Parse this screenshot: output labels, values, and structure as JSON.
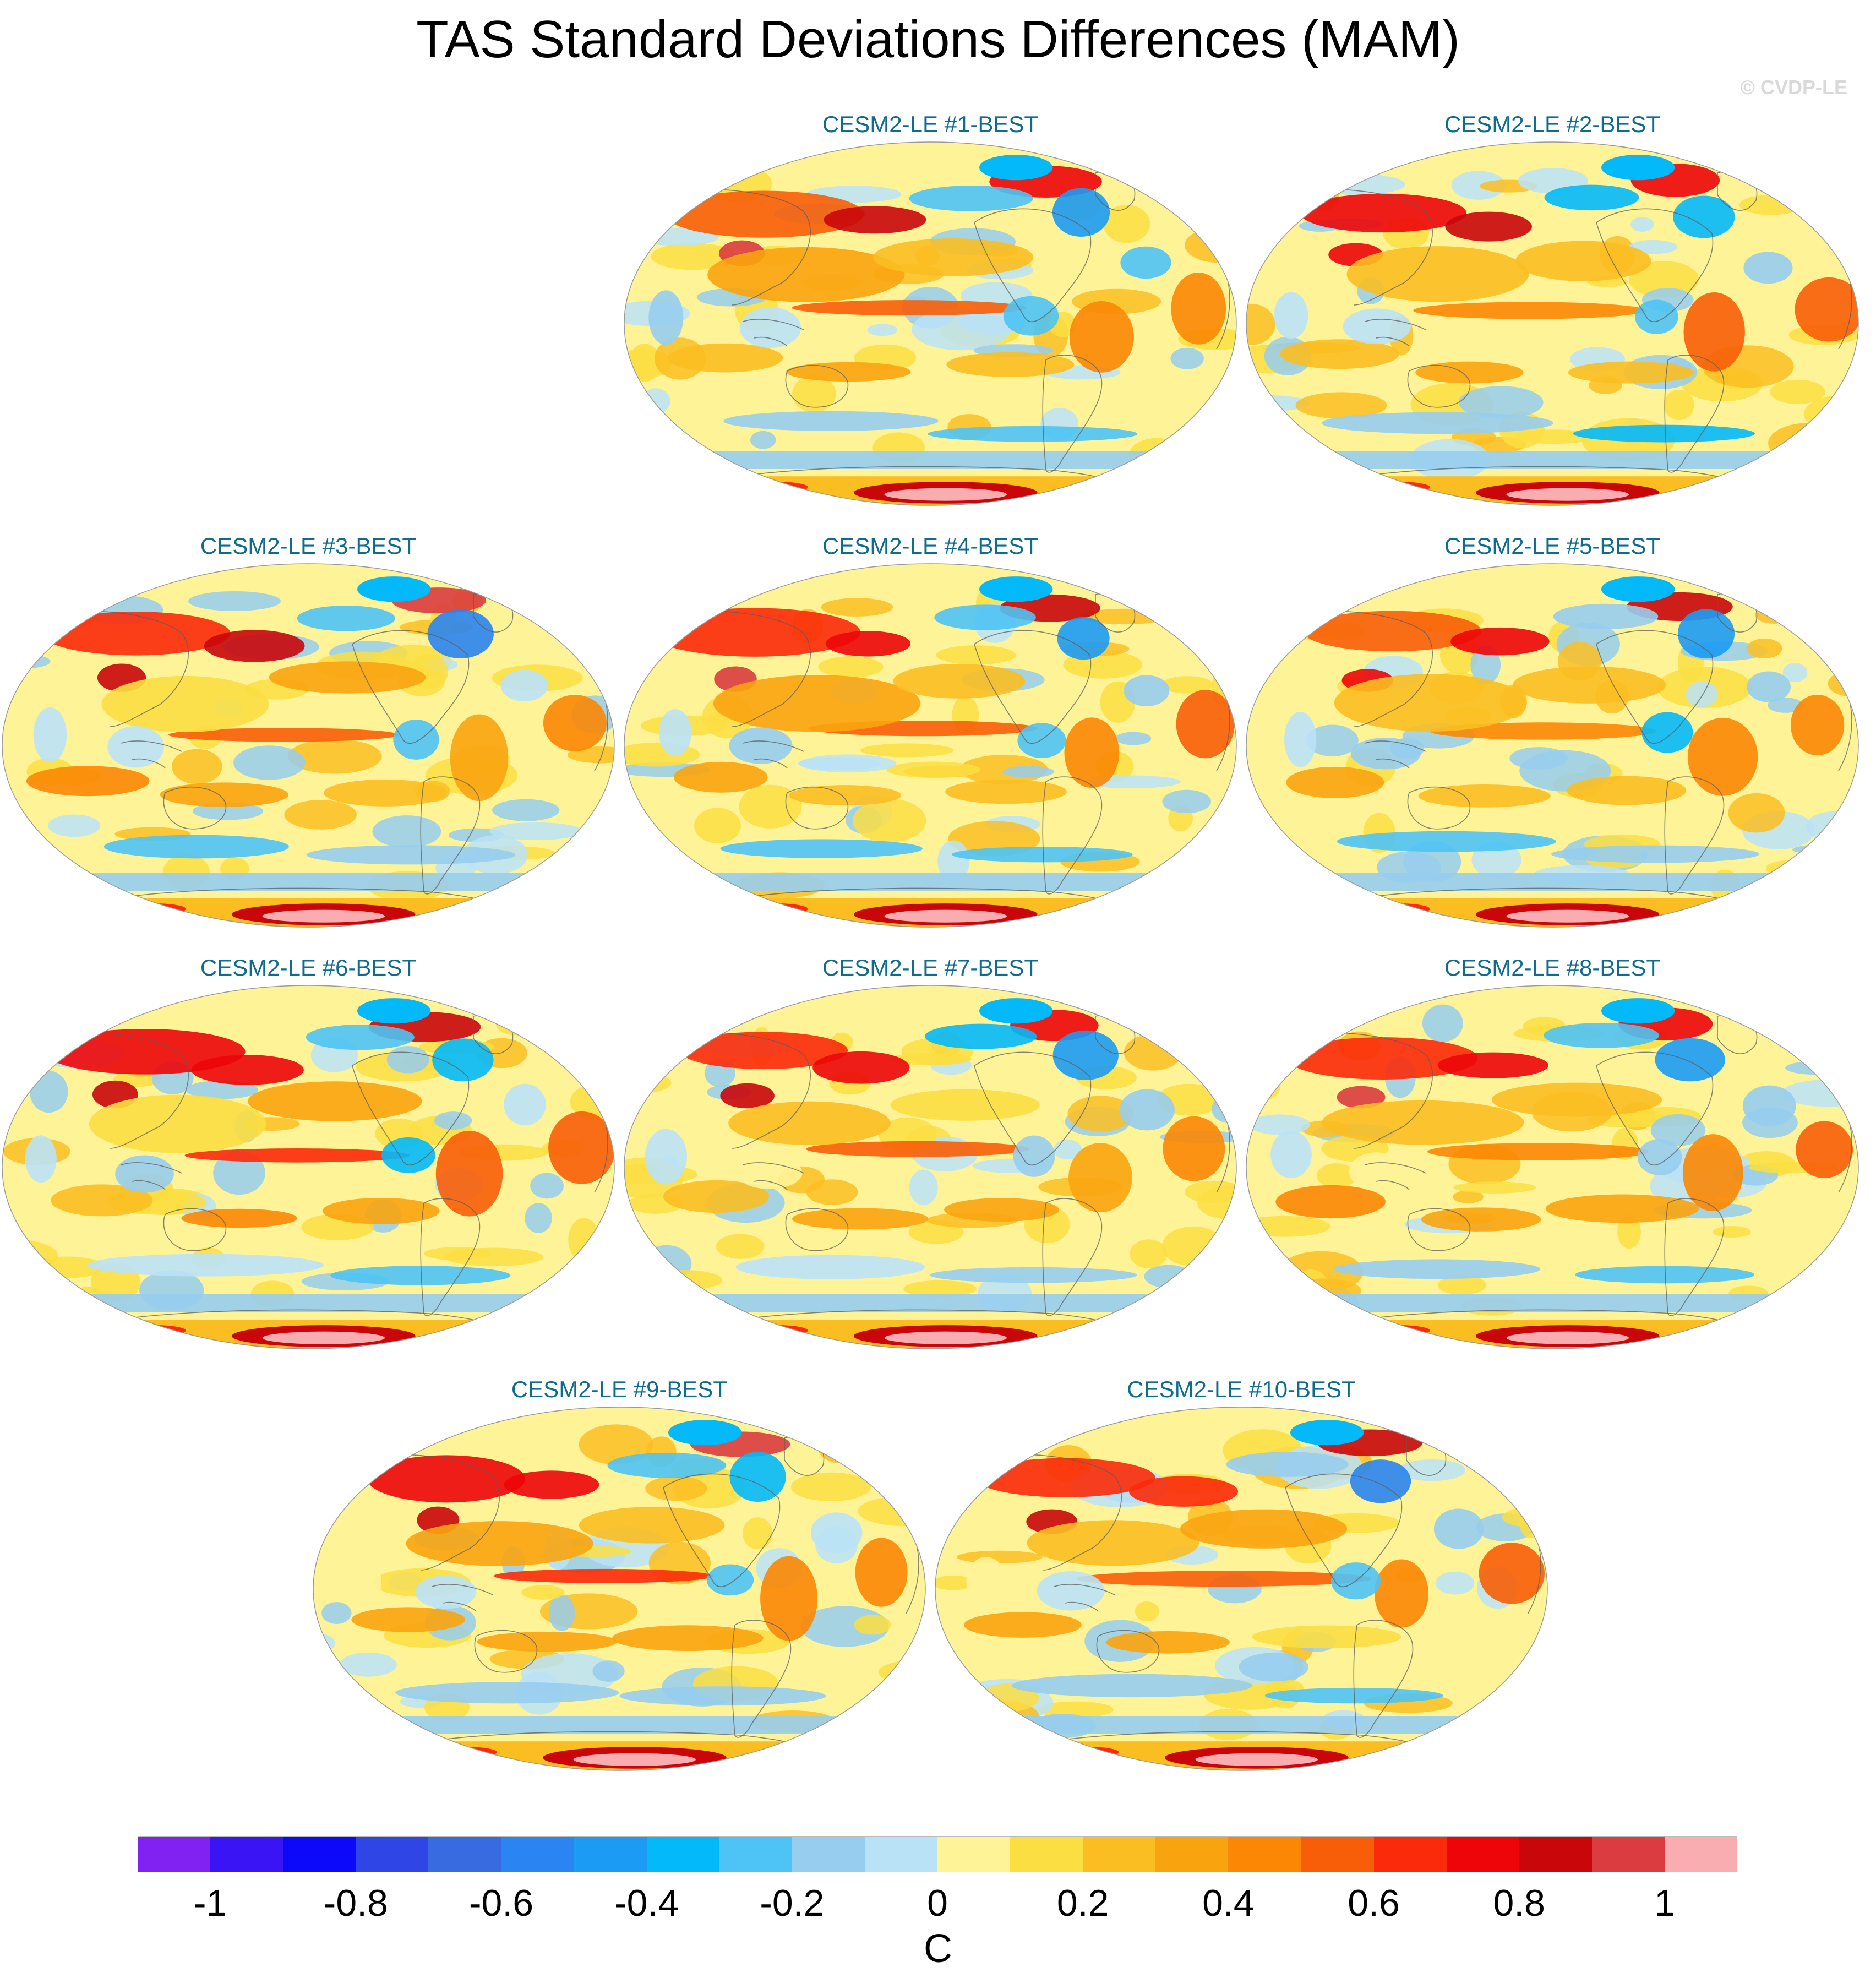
{
  "title": "TAS Standard Deviations Differences (MAM)",
  "watermark": "© CVDP-LE",
  "panels": [
    {
      "label": "CESM2-LE #1-BEST"
    },
    {
      "label": "CESM2-LE #2-BEST"
    },
    {
      "label": "CESM2-LE #3-BEST"
    },
    {
      "label": "CESM2-LE #4-BEST"
    },
    {
      "label": "CESM2-LE #5-BEST"
    },
    {
      "label": "CESM2-LE #6-BEST"
    },
    {
      "label": "CESM2-LE #7-BEST"
    },
    {
      "label": "CESM2-LE #8-BEST"
    },
    {
      "label": "CESM2-LE #9-BEST"
    },
    {
      "label": "CESM2-LE #10-BEST"
    }
  ],
  "colorbar": {
    "unit": "C",
    "tick_labels": [
      "-1",
      "-0.8",
      "-0.6",
      "-0.4",
      "-0.2",
      "0",
      "0.2",
      "0.4",
      "0.6",
      "0.8",
      "1"
    ],
    "tick_values": [
      -1,
      -0.8,
      -0.6,
      -0.4,
      -0.2,
      0,
      0.2,
      0.4,
      0.6,
      0.8,
      1
    ],
    "range": [
      -1.1,
      1.1
    ],
    "colors": [
      "#8122f2",
      "#3b14f5",
      "#0c08fa",
      "#2f45e6",
      "#386bdf",
      "#2a84f1",
      "#1c9bf5",
      "#04b9fa",
      "#4ec3f5",
      "#97cdee",
      "#bae2f7",
      "#fef497",
      "#fbde42",
      "#fbbe22",
      "#f9a40f",
      "#fb8704",
      "#f85e08",
      "#fb2a0a",
      "#ed0509",
      "#c9070b",
      "#da3c3f",
      "#f9adb0"
    ]
  }
}
